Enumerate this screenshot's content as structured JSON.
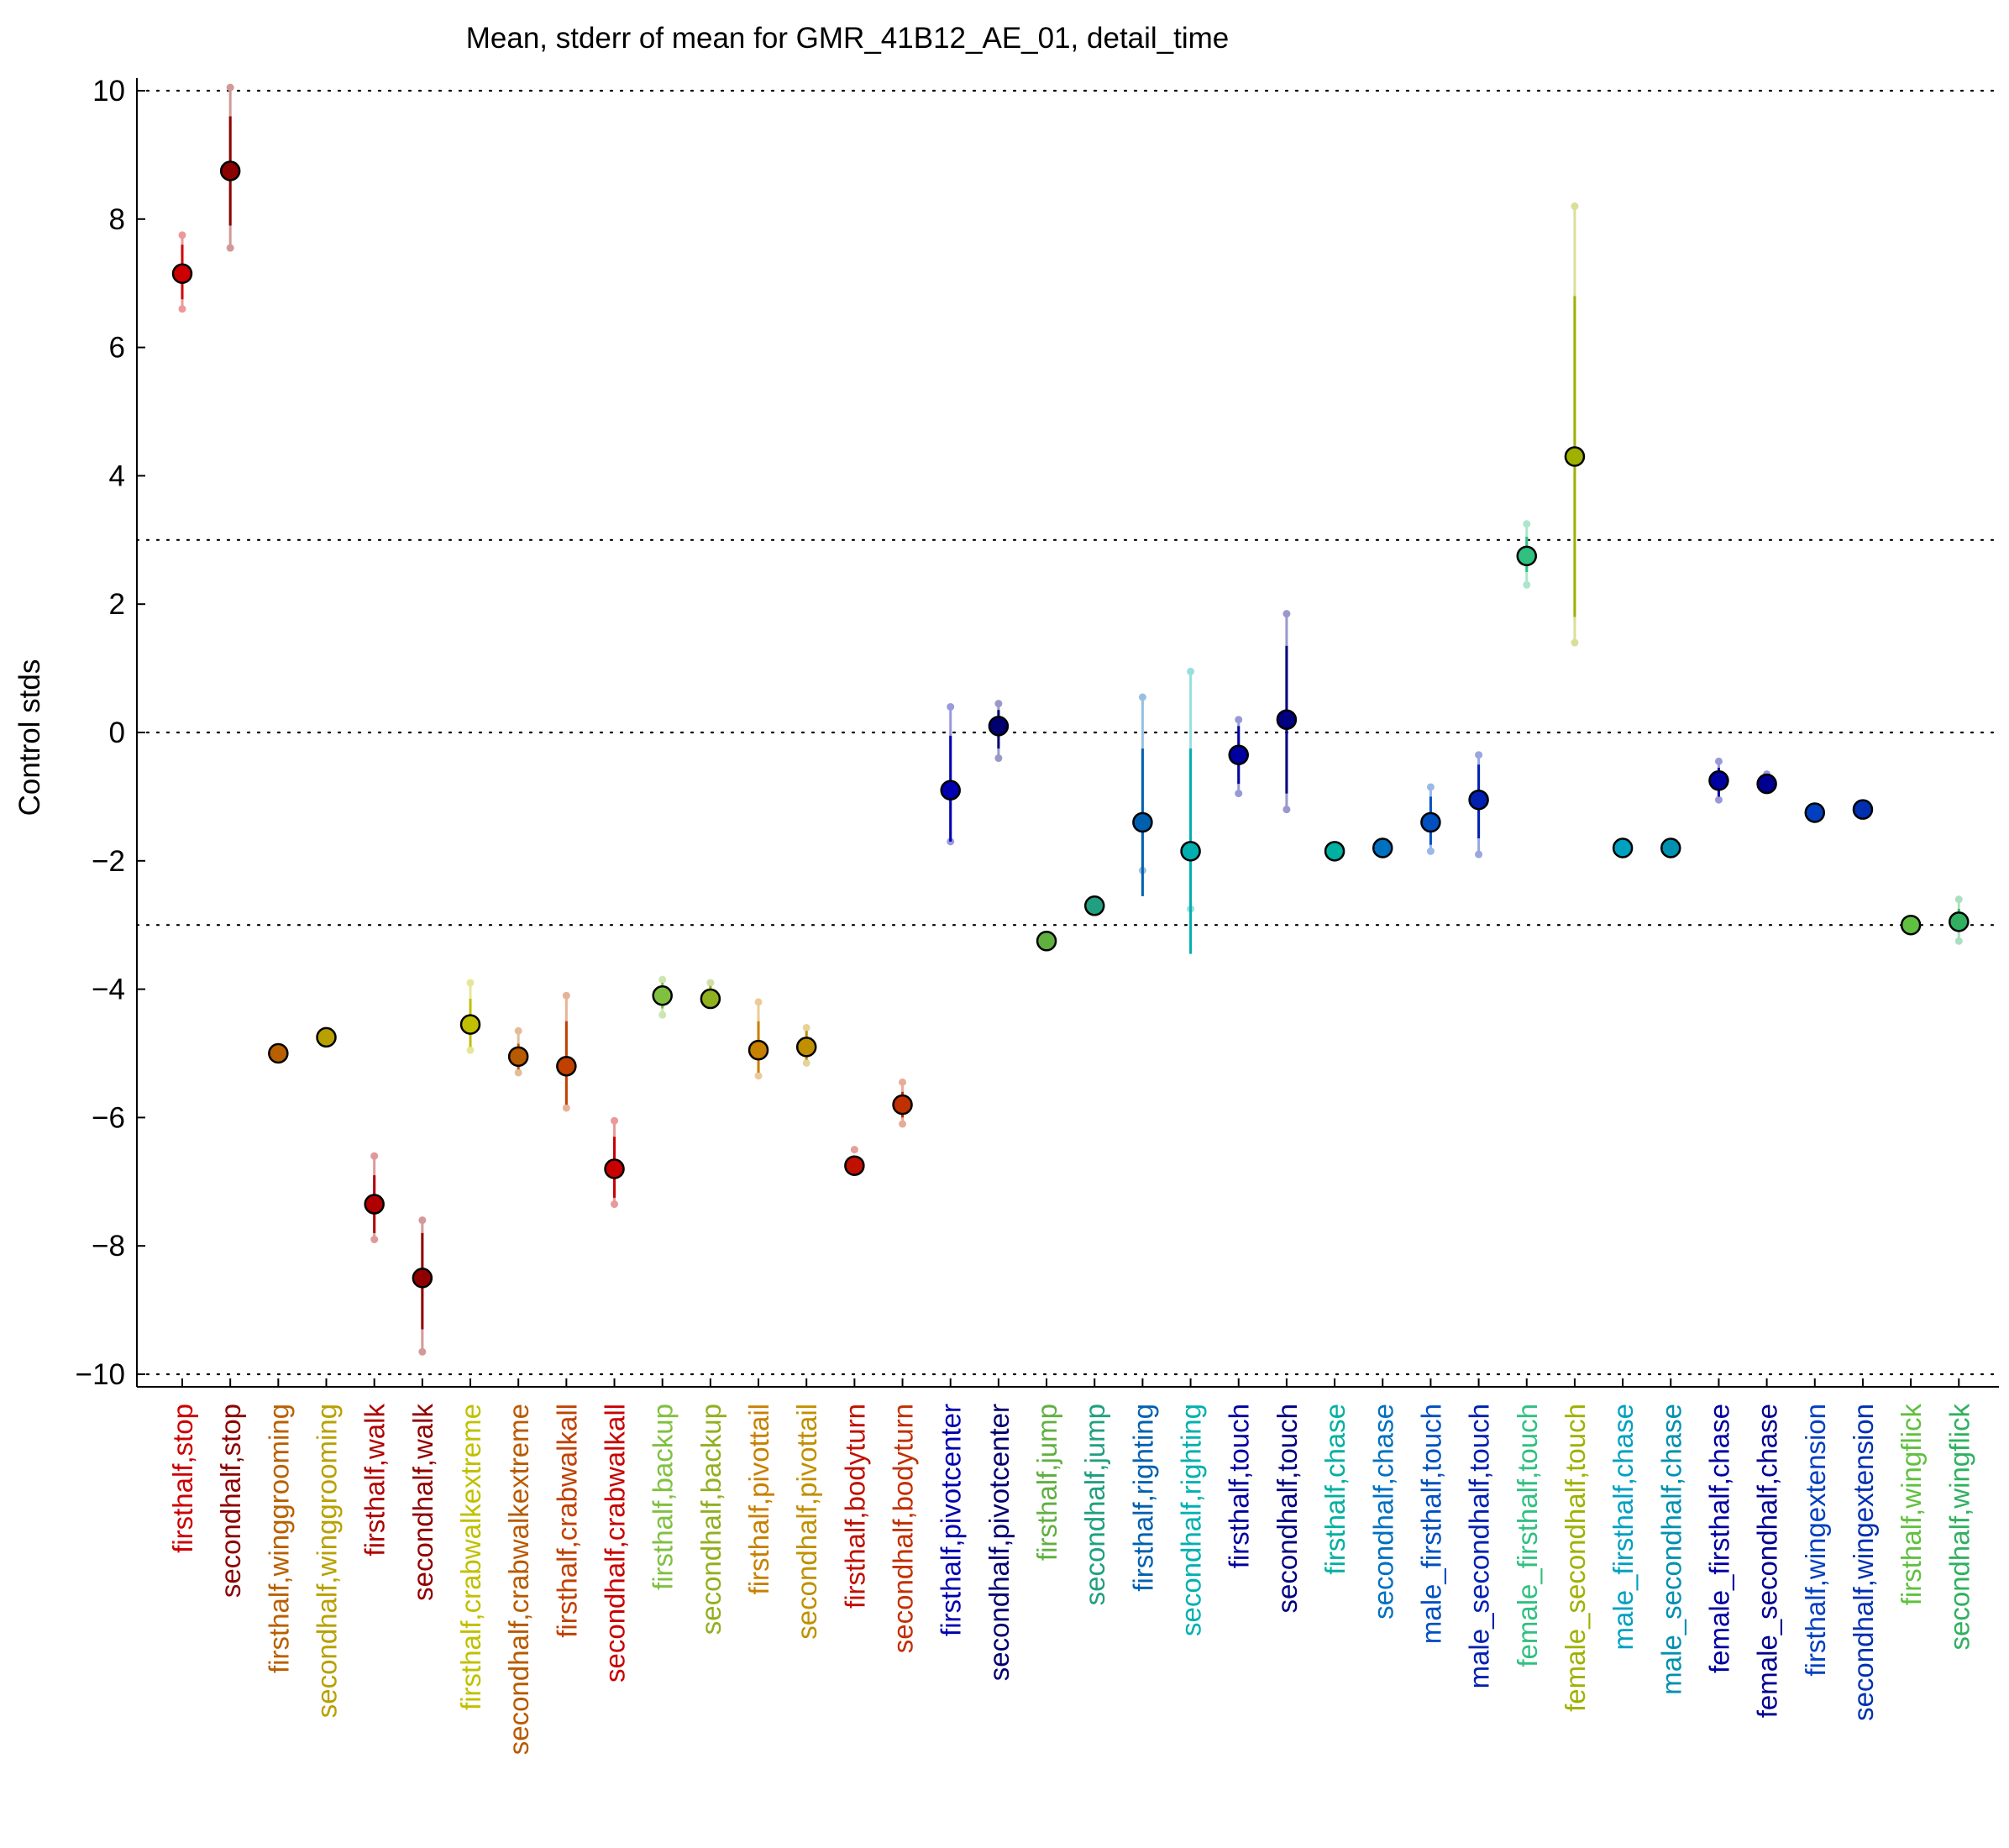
{
  "chart_data": {
    "type": "scatter",
    "title": "Mean, stderr of mean for GMR_41B12_AE_01, detail_time",
    "xlabel": "",
    "ylabel": "Control stds",
    "ylim": [
      -10.2,
      10.05
    ],
    "yticks": [
      10,
      8,
      6,
      4,
      2,
      0,
      -2,
      -4,
      -6,
      -8,
      -10
    ],
    "ytick_labels": [
      "10",
      "8",
      "6",
      "4",
      "2",
      "0",
      "−2",
      "−4",
      "−6",
      "−8",
      "−10"
    ],
    "reference_lines": [
      10,
      3,
      0,
      -3,
      -10
    ],
    "grid": false,
    "legend": "none",
    "points": [
      {
        "label": "firsthalf,stop",
        "mean": 7.15,
        "err_lo": 6.75,
        "err_hi": 7.6,
        "ext_lo": 6.6,
        "ext_hi": 7.75,
        "color": "#cc0000"
      },
      {
        "label": "secondhalf,stop",
        "mean": 8.75,
        "err_lo": 7.9,
        "err_hi": 9.6,
        "ext_lo": 7.55,
        "ext_hi": 10.05,
        "color": "#8b0000"
      },
      {
        "label": "firsthalf,winggrooming",
        "mean": -5.0,
        "color": "#b86000"
      },
      {
        "label": "secondhalf,winggrooming",
        "mean": -4.75,
        "color": "#b8a000"
      },
      {
        "label": "firsthalf,walk",
        "mean": -7.35,
        "err_lo": -7.8,
        "err_hi": -6.9,
        "ext_lo": -7.9,
        "ext_hi": -6.6,
        "color": "#b00000"
      },
      {
        "label": "secondhalf,walk",
        "mean": -8.5,
        "err_lo": -9.3,
        "err_hi": -7.8,
        "ext_lo": -9.65,
        "ext_hi": -7.6,
        "color": "#900000"
      },
      {
        "label": "firsthalf,crabwalkextreme",
        "mean": -4.55,
        "err_lo": -4.9,
        "err_hi": -4.15,
        "ext_lo": -4.95,
        "ext_hi": -3.9,
        "color": "#c0c000"
      },
      {
        "label": "secondhalf,crabwalkextreme",
        "mean": -5.05,
        "err_lo": -5.25,
        "err_hi": -4.85,
        "ext_lo": -5.3,
        "ext_hi": -4.65,
        "color": "#b85a00"
      },
      {
        "label": "firsthalf,crabwalkall",
        "mean": -5.2,
        "err_lo": -5.8,
        "err_hi": -4.5,
        "ext_lo": -5.85,
        "ext_hi": -4.1,
        "color": "#c04000"
      },
      {
        "label": "secondhalf,crabwalkall",
        "mean": -6.8,
        "err_lo": -7.25,
        "err_hi": -6.3,
        "ext_lo": -7.35,
        "ext_hi": -6.05,
        "color": "#c80000"
      },
      {
        "label": "firsthalf,backup",
        "mean": -4.1,
        "err_lo": -4.3,
        "err_hi": -3.9,
        "ext_lo": -4.4,
        "ext_hi": -3.85,
        "color": "#80c040"
      },
      {
        "label": "secondhalf,backup",
        "mean": -4.15,
        "err_lo": -4.2,
        "err_hi": -3.95,
        "ext_lo": -4.2,
        "ext_hi": -3.9,
        "color": "#90b020"
      },
      {
        "label": "firsthalf,pivottail",
        "mean": -4.95,
        "err_lo": -5.3,
        "err_hi": -4.5,
        "ext_lo": -5.35,
        "ext_hi": -4.2,
        "color": "#c88000"
      },
      {
        "label": "secondhalf,pivottail",
        "mean": -4.9,
        "err_lo": -5.1,
        "err_hi": -4.65,
        "ext_lo": -5.15,
        "ext_hi": -4.6,
        "color": "#c09000"
      },
      {
        "label": "firsthalf,bodyturn",
        "mean": -6.75,
        "ext_hi": -6.5,
        "color": "#c01000"
      },
      {
        "label": "secondhalf,bodyturn",
        "mean": -5.8,
        "err_lo": -6.0,
        "err_hi": -5.6,
        "ext_lo": -6.1,
        "ext_hi": -5.45,
        "color": "#c03000"
      },
      {
        "label": "firsthalf,pivotcenter",
        "mean": -0.9,
        "err_lo": -1.7,
        "err_hi": -0.05,
        "ext_lo": -1.7,
        "ext_hi": 0.4,
        "color": "#0000b0"
      },
      {
        "label": "secondhalf,pivotcenter",
        "mean": 0.1,
        "err_lo": -0.25,
        "err_hi": 0.35,
        "ext_lo": -0.4,
        "ext_hi": 0.45,
        "color": "#000070"
      },
      {
        "label": "firsthalf,jump",
        "mean": -3.25,
        "color": "#60b040"
      },
      {
        "label": "secondhalf,jump",
        "mean": -2.7,
        "color": "#20a080"
      },
      {
        "label": "firsthalf,righting",
        "mean": -1.4,
        "err_lo": -2.55,
        "err_hi": -0.25,
        "ext_lo": -2.15,
        "ext_hi": 0.55,
        "color": "#0060b0"
      },
      {
        "label": "secondhalf,righting",
        "mean": -1.85,
        "err_lo": -3.45,
        "err_hi": -0.25,
        "ext_lo": -2.75,
        "ext_hi": 0.95,
        "color": "#00b0b0"
      },
      {
        "label": "firsthalf,touch",
        "mean": -0.35,
        "err_lo": -0.8,
        "err_hi": 0.1,
        "ext_lo": -0.95,
        "ext_hi": 0.2,
        "color": "#0000a0"
      },
      {
        "label": "secondhalf,touch",
        "mean": 0.2,
        "err_lo": -0.95,
        "err_hi": 1.35,
        "ext_lo": -1.2,
        "ext_hi": 1.85,
        "color": "#000080"
      },
      {
        "label": "firsthalf,chase",
        "mean": -1.85,
        "color": "#00b0a0"
      },
      {
        "label": "secondhalf,chase",
        "mean": -1.8,
        "color": "#0070c0"
      },
      {
        "label": "male_firsthalf,touch",
        "mean": -1.4,
        "err_lo": -1.75,
        "err_hi": -1.0,
        "ext_lo": -1.85,
        "ext_hi": -0.85,
        "color": "#0050c0"
      },
      {
        "label": "male_secondhalf,touch",
        "mean": -1.05,
        "err_lo": -1.65,
        "err_hi": -0.5,
        "ext_lo": -1.9,
        "ext_hi": -0.35,
        "color": "#0020b0"
      },
      {
        "label": "female_firsthalf,touch",
        "mean": 2.75,
        "err_lo": 2.5,
        "err_hi": 3.05,
        "ext_lo": 2.3,
        "ext_hi": 3.25,
        "color": "#30c080"
      },
      {
        "label": "female_secondhalf,touch",
        "mean": 4.3,
        "err_lo": 1.8,
        "err_hi": 6.8,
        "ext_lo": 1.4,
        "ext_hi": 8.2,
        "color": "#a0b000"
      },
      {
        "label": "male_firsthalf,chase",
        "mean": -1.8,
        "color": "#00a0c0"
      },
      {
        "label": "male_secondhalf,chase",
        "mean": -1.8,
        "color": "#0090b0"
      },
      {
        "label": "female_firsthalf,chase",
        "mean": -0.75,
        "err_lo": -1.0,
        "err_hi": -0.55,
        "ext_lo": -1.05,
        "ext_hi": -0.45,
        "color": "#0000a0"
      },
      {
        "label": "female_secondhalf,chase",
        "mean": -0.8,
        "ext_hi": -0.65,
        "color": "#000090"
      },
      {
        "label": "firsthalf,wingextension",
        "mean": -1.25,
        "color": "#0040c0"
      },
      {
        "label": "secondhalf,wingextension",
        "mean": -1.2,
        "color": "#0030b0"
      },
      {
        "label": "firsthalf,wingflick",
        "mean": -3.0,
        "color": "#60c040"
      },
      {
        "label": "secondhalf,wingflick",
        "mean": -2.95,
        "err_lo": -3.1,
        "err_hi": -2.75,
        "ext_lo": -3.25,
        "ext_hi": -2.6,
        "color": "#30b060"
      }
    ]
  }
}
